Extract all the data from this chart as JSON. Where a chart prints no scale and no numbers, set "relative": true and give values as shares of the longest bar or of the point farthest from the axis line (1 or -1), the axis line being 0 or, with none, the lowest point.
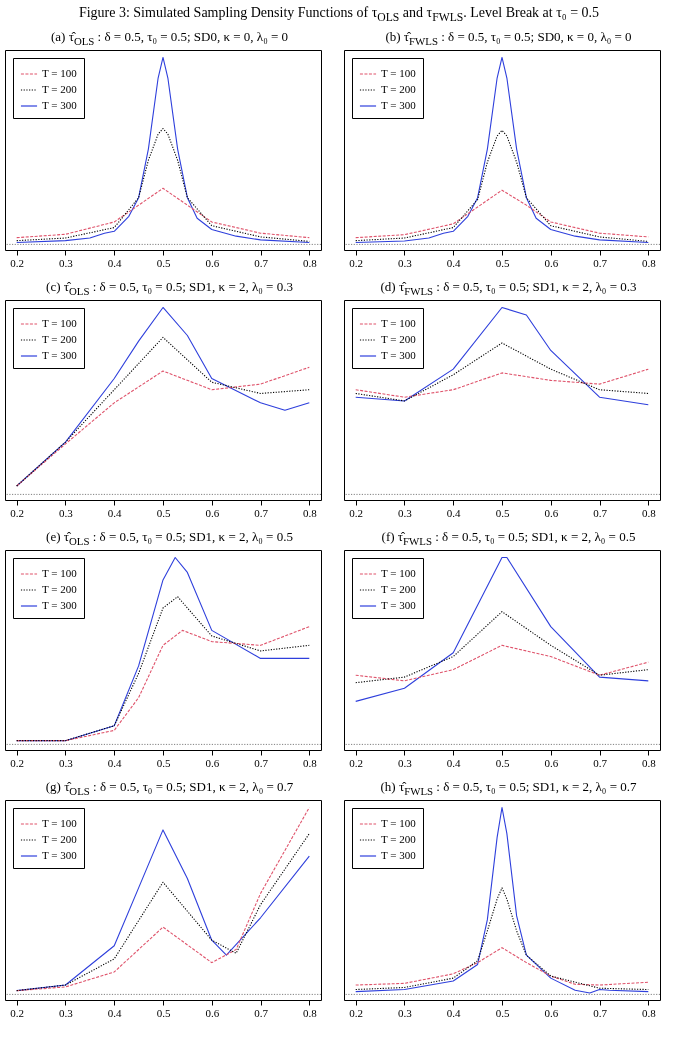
{
  "chart_data": [
    {
      "type": "line",
      "title": "Figure 3: Simulated Sampling Density Functions of τ$_{OLS}$ and τ$_{FWLS}$. Level Break at τ₀ = 0.5",
      "subtitle": "(a) τ̂$_{OLS}$ : δ = 0.5, τ₀ = 0.5; SD0, κ = 0, λ₀ = 0",
      "relative": true,
      "xlim": [
        0.176,
        0.824
      ],
      "xticks": [
        0.2,
        0.3,
        0.4,
        0.5,
        0.6,
        0.7,
        0.8
      ],
      "legend": "top left",
      "ref_lines": [
        {
          "axis": "y",
          "value": 0,
          "color": "#808080",
          "line_style": "dotted"
        }
      ],
      "series": [
        {
          "name": "T = 100",
          "color": "#df536b",
          "line_style": "dashed",
          "x": [
            0.2,
            0.3,
            0.4,
            0.45,
            0.5,
            0.55,
            0.6,
            0.7,
            0.8
          ],
          "values": [
            0.036,
            0.054,
            0.12,
            0.21,
            0.3,
            0.21,
            0.12,
            0.06,
            0.036
          ]
        },
        {
          "name": "T = 200",
          "color": "#000000",
          "line_style": "dotted",
          "x": [
            0.2,
            0.3,
            0.4,
            0.45,
            0.47,
            0.49,
            0.5,
            0.51,
            0.53,
            0.55,
            0.6,
            0.7,
            0.8
          ],
          "values": [
            0.02,
            0.034,
            0.09,
            0.25,
            0.45,
            0.59,
            0.62,
            0.59,
            0.45,
            0.25,
            0.1,
            0.04,
            0.016
          ]
        },
        {
          "name": "T = 300",
          "color": "#2e3fdc",
          "line_style": "solid",
          "x": [
            0.2,
            0.3,
            0.35,
            0.38,
            0.4,
            0.43,
            0.45,
            0.47,
            0.49,
            0.5,
            0.51,
            0.53,
            0.55,
            0.57,
            0.6,
            0.65,
            0.7,
            0.8
          ],
          "values": [
            0.01,
            0.02,
            0.034,
            0.06,
            0.07,
            0.15,
            0.25,
            0.51,
            0.89,
            1,
            0.89,
            0.51,
            0.25,
            0.14,
            0.08,
            0.044,
            0.024,
            0.01
          ]
        }
      ]
    },
    {
      "type": "line",
      "subtitle": "(b) τ̂$_{FWLS}$ : δ = 0.5, τ₀ = 0.5; SD0, κ = 0, λ₀ = 0",
      "relative": true,
      "xlim": [
        0.176,
        0.824
      ],
      "xticks": [
        0.2,
        0.3,
        0.4,
        0.5,
        0.6,
        0.7,
        0.8
      ],
      "legend": "top left",
      "ref_lines": [
        {
          "axis": "y",
          "value": 0,
          "color": "#808080",
          "line_style": "dotted"
        }
      ],
      "series": [
        {
          "name": "T = 100",
          "color": "#df536b",
          "line_style": "dashed",
          "x": [
            0.2,
            0.3,
            0.4,
            0.45,
            0.5,
            0.55,
            0.6,
            0.7,
            0.8
          ],
          "values": [
            0.036,
            0.052,
            0.11,
            0.2,
            0.29,
            0.21,
            0.12,
            0.06,
            0.04
          ]
        },
        {
          "name": "T = 200",
          "color": "#000000",
          "line_style": "dotted",
          "x": [
            0.2,
            0.3,
            0.4,
            0.45,
            0.47,
            0.49,
            0.5,
            0.51,
            0.53,
            0.55,
            0.6,
            0.7,
            0.8
          ],
          "values": [
            0.02,
            0.034,
            0.09,
            0.24,
            0.44,
            0.58,
            0.61,
            0.58,
            0.44,
            0.25,
            0.1,
            0.04,
            0.016
          ]
        },
        {
          "name": "T = 300",
          "color": "#2e3fdc",
          "line_style": "solid",
          "x": [
            0.2,
            0.3,
            0.35,
            0.38,
            0.4,
            0.43,
            0.45,
            0.47,
            0.49,
            0.5,
            0.51,
            0.53,
            0.55,
            0.57,
            0.6,
            0.65,
            0.7,
            0.8
          ],
          "values": [
            0.01,
            0.018,
            0.034,
            0.06,
            0.07,
            0.15,
            0.25,
            0.51,
            0.89,
            1,
            0.89,
            0.51,
            0.25,
            0.14,
            0.08,
            0.044,
            0.024,
            0.01
          ]
        }
      ]
    },
    {
      "type": "line",
      "subtitle": "(c) τ̂$_{OLS}$ : δ = 0.5, τ₀ = 0.5; SD1, κ = 2, λ₀ = 0.3",
      "relative": true,
      "xlim": [
        0.176,
        0.824
      ],
      "xticks": [
        0.2,
        0.3,
        0.4,
        0.5,
        0.6,
        0.7,
        0.8
      ],
      "legend": "top left",
      "ref_lines": [
        {
          "axis": "y",
          "value": 0,
          "color": "#808080",
          "line_style": "dotted"
        }
      ],
      "series": [
        {
          "name": "T = 100",
          "color": "#df536b",
          "line_style": "dashed",
          "x": [
            0.2,
            0.3,
            0.4,
            0.5,
            0.6,
            0.7,
            0.8
          ],
          "values": [
            0.045,
            0.27,
            0.49,
            0.66,
            0.56,
            0.59,
            0.68
          ]
        },
        {
          "name": "T = 200",
          "color": "#000000",
          "line_style": "dotted",
          "x": [
            0.2,
            0.3,
            0.4,
            0.5,
            0.6,
            0.7,
            0.8
          ],
          "values": [
            0.045,
            0.28,
            0.56,
            0.84,
            0.6,
            0.54,
            0.56
          ]
        },
        {
          "name": "T = 300",
          "color": "#2e3fdc",
          "line_style": "solid",
          "x": [
            0.2,
            0.3,
            0.4,
            0.45,
            0.5,
            0.55,
            0.6,
            0.7,
            0.75,
            0.8
          ],
          "values": [
            0.045,
            0.28,
            0.62,
            0.82,
            1,
            0.85,
            0.62,
            0.49,
            0.45,
            0.49
          ]
        }
      ]
    },
    {
      "type": "line",
      "subtitle": "(d) τ̂$_{FWLS}$ : δ = 0.5, τ₀ = 0.5; SD1, κ = 2, λ₀ = 0.3",
      "relative": true,
      "xlim": [
        0.176,
        0.824
      ],
      "xticks": [
        0.2,
        0.3,
        0.4,
        0.5,
        0.6,
        0.7,
        0.8
      ],
      "legend": "top left",
      "ref_lines": [
        {
          "axis": "y",
          "value": 0,
          "color": "#808080",
          "line_style": "dotted"
        }
      ],
      "series": [
        {
          "name": "T = 100",
          "color": "#df536b",
          "line_style": "dashed",
          "x": [
            0.2,
            0.3,
            0.4,
            0.5,
            0.6,
            0.7,
            0.8
          ],
          "values": [
            0.56,
            0.52,
            0.56,
            0.65,
            0.61,
            0.59,
            0.67
          ]
        },
        {
          "name": "T = 200",
          "color": "#000000",
          "line_style": "dotted",
          "x": [
            0.2,
            0.3,
            0.4,
            0.5,
            0.6,
            0.7,
            0.8
          ],
          "values": [
            0.54,
            0.5,
            0.64,
            0.81,
            0.67,
            0.56,
            0.54
          ]
        },
        {
          "name": "T = 300",
          "color": "#2e3fdc",
          "line_style": "solid",
          "x": [
            0.2,
            0.3,
            0.4,
            0.5,
            0.55,
            0.6,
            0.7,
            0.8
          ],
          "values": [
            0.52,
            0.5,
            0.67,
            1,
            0.96,
            0.77,
            0.52,
            0.48
          ]
        }
      ]
    },
    {
      "type": "line",
      "subtitle": "(e) τ̂$_{OLS}$ : δ = 0.5, τ₀ = 0.5; SD1, κ = 2, λ₀ = 0.5",
      "relative": true,
      "xlim": [
        0.176,
        0.824
      ],
      "xticks": [
        0.2,
        0.3,
        0.4,
        0.5,
        0.6,
        0.7,
        0.8
      ],
      "legend": "top left",
      "ref_lines": [
        {
          "axis": "y",
          "value": 0,
          "color": "#808080",
          "line_style": "dotted"
        }
      ],
      "series": [
        {
          "name": "T = 100",
          "color": "#df536b",
          "line_style": "dashed",
          "x": [
            0.2,
            0.3,
            0.4,
            0.45,
            0.5,
            0.54,
            0.6,
            0.7,
            0.8
          ],
          "values": [
            0.02,
            0.02,
            0.075,
            0.25,
            0.53,
            0.61,
            0.55,
            0.53,
            0.63
          ]
        },
        {
          "name": "T = 200",
          "color": "#000000",
          "line_style": "dotted",
          "x": [
            0.2,
            0.3,
            0.4,
            0.45,
            0.5,
            0.53,
            0.6,
            0.7,
            0.8
          ],
          "values": [
            0.02,
            0.02,
            0.1,
            0.38,
            0.73,
            0.79,
            0.58,
            0.5,
            0.53
          ]
        },
        {
          "name": "T = 300",
          "color": "#2e3fdc",
          "line_style": "solid",
          "x": [
            0.2,
            0.3,
            0.4,
            0.45,
            0.5,
            0.525,
            0.55,
            0.6,
            0.7,
            0.8
          ],
          "values": [
            0.02,
            0.02,
            0.1,
            0.42,
            0.88,
            1,
            0.92,
            0.61,
            0.46,
            0.46
          ]
        }
      ]
    },
    {
      "type": "line",
      "subtitle": "(f) τ̂$_{FWLS}$ : δ = 0.5, τ₀ = 0.5; SD1, κ = 2, λ₀ = 0.5",
      "relative": true,
      "xlim": [
        0.176,
        0.824
      ],
      "xticks": [
        0.2,
        0.3,
        0.4,
        0.5,
        0.6,
        0.7,
        0.8
      ],
      "legend": "top left",
      "ref_lines": [
        {
          "axis": "y",
          "value": 0,
          "color": "#808080",
          "line_style": "dotted"
        }
      ],
      "series": [
        {
          "name": "T = 100",
          "color": "#df536b",
          "line_style": "dashed",
          "x": [
            0.2,
            0.3,
            0.4,
            0.5,
            0.6,
            0.7,
            0.8
          ],
          "values": [
            0.37,
            0.34,
            0.4,
            0.53,
            0.47,
            0.37,
            0.44
          ]
        },
        {
          "name": "T = 200",
          "color": "#000000",
          "line_style": "dotted",
          "x": [
            0.2,
            0.3,
            0.4,
            0.5,
            0.6,
            0.7,
            0.8
          ],
          "values": [
            0.33,
            0.36,
            0.47,
            0.71,
            0.53,
            0.37,
            0.4
          ]
        },
        {
          "name": "T = 300",
          "color": "#2e3fdc",
          "line_style": "solid",
          "x": [
            0.2,
            0.3,
            0.4,
            0.5,
            0.51,
            0.6,
            0.7,
            0.8
          ],
          "values": [
            0.23,
            0.3,
            0.49,
            1,
            1,
            0.63,
            0.36,
            0.34
          ]
        }
      ]
    },
    {
      "type": "line",
      "subtitle": "(g) τ̂$_{OLS}$ : δ = 0.5, τ₀ = 0.5; SD1, κ = 2, λ₀ = 0.7",
      "relative": true,
      "xlim": [
        0.176,
        0.824
      ],
      "xticks": [
        0.2,
        0.3,
        0.4,
        0.5,
        0.6,
        0.7,
        0.8
      ],
      "legend": "top left",
      "ref_lines": [
        {
          "axis": "y",
          "value": 0,
          "color": "#808080",
          "line_style": "dotted"
        }
      ],
      "series": [
        {
          "name": "T = 100",
          "color": "#df536b",
          "line_style": "dashed",
          "x": [
            0.2,
            0.3,
            0.4,
            0.5,
            0.6,
            0.65,
            0.7,
            0.8
          ],
          "values": [
            0.02,
            0.04,
            0.12,
            0.36,
            0.17,
            0.24,
            0.54,
            1
          ]
        },
        {
          "name": "T = 200",
          "color": "#000000",
          "line_style": "dotted",
          "x": [
            0.2,
            0.3,
            0.4,
            0.5,
            0.6,
            0.65,
            0.7,
            0.8
          ],
          "values": [
            0.02,
            0.05,
            0.19,
            0.6,
            0.29,
            0.22,
            0.48,
            0.86
          ]
        },
        {
          "name": "T = 300",
          "color": "#2e3fdc",
          "line_style": "solid",
          "x": [
            0.2,
            0.3,
            0.4,
            0.45,
            0.5,
            0.55,
            0.6,
            0.63,
            0.7,
            0.8
          ],
          "values": [
            0.02,
            0.05,
            0.26,
            0.57,
            0.88,
            0.62,
            0.29,
            0.21,
            0.41,
            0.74
          ]
        }
      ]
    },
    {
      "type": "line",
      "subtitle": "(h) τ̂$_{FWLS}$ : δ = 0.5, τ₀ = 0.5; SD1, κ = 2, λ₀ = 0.7",
      "relative": true,
      "xlim": [
        0.176,
        0.824
      ],
      "xticks": [
        0.2,
        0.3,
        0.4,
        0.5,
        0.6,
        0.7,
        0.8
      ],
      "legend": "top left",
      "ref_lines": [
        {
          "axis": "y",
          "value": 0,
          "color": "#808080",
          "line_style": "dotted"
        }
      ],
      "series": [
        {
          "name": "T = 100",
          "color": "#df536b",
          "line_style": "dashed",
          "x": [
            0.2,
            0.3,
            0.4,
            0.45,
            0.5,
            0.55,
            0.6,
            0.65,
            0.7,
            0.8
          ],
          "values": [
            0.05,
            0.059,
            0.11,
            0.17,
            0.25,
            0.17,
            0.098,
            0.054,
            0.05,
            0.065
          ]
        },
        {
          "name": "T = 200",
          "color": "#000000",
          "line_style": "dotted",
          "x": [
            0.2,
            0.3,
            0.4,
            0.45,
            0.47,
            0.49,
            0.5,
            0.51,
            0.53,
            0.55,
            0.6,
            0.7,
            0.8
          ],
          "values": [
            0.026,
            0.037,
            0.087,
            0.18,
            0.34,
            0.51,
            0.57,
            0.51,
            0.34,
            0.21,
            0.098,
            0.033,
            0.026
          ]
        },
        {
          "name": "T = 300",
          "color": "#2e3fdc",
          "line_style": "solid",
          "x": [
            0.2,
            0.3,
            0.4,
            0.45,
            0.47,
            0.49,
            0.5,
            0.51,
            0.53,
            0.55,
            0.6,
            0.65,
            0.68,
            0.7,
            0.72,
            0.8
          ],
          "values": [
            0.015,
            0.026,
            0.072,
            0.16,
            0.4,
            0.84,
            1,
            0.86,
            0.42,
            0.21,
            0.087,
            0.022,
            0.007,
            0.026,
            0.022,
            0.015
          ]
        }
      ]
    }
  ]
}
